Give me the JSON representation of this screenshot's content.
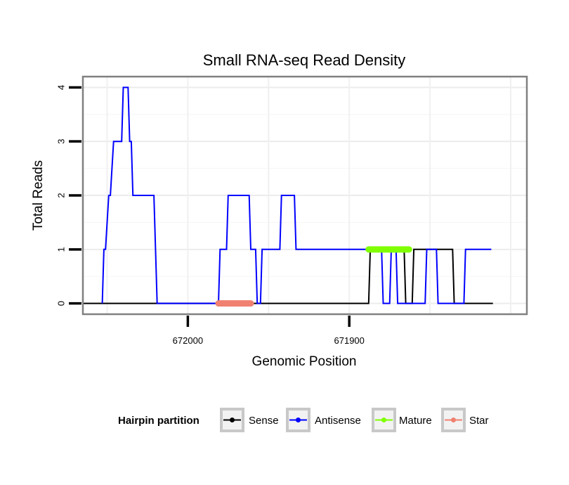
{
  "chart_data": {
    "type": "line",
    "title": "Small RNA-seq Read Density",
    "xlabel": "Genomic Position",
    "ylabel": "Total Reads",
    "x_reversed": true,
    "xlim": [
      672065,
      671790
    ],
    "ylim": [
      -0.2,
      4.2
    ],
    "x_ticks": [
      672000,
      671900
    ],
    "x_tick_labels": [
      "672000",
      "671900"
    ],
    "y_ticks": [
      0,
      1,
      2,
      3,
      4
    ],
    "y_tick_labels": [
      "0",
      "1",
      "2",
      "3",
      "4"
    ],
    "grid": true,
    "legend": {
      "title": "Hairpin partition",
      "position": "bottom",
      "entries": [
        {
          "label": "Sense",
          "color": "#000000"
        },
        {
          "label": "Antisense",
          "color": "#0000FF"
        },
        {
          "label": "Mature",
          "color": "#7FFF00"
        },
        {
          "label": "Star",
          "color": "#F08070"
        }
      ]
    },
    "series": [
      {
        "name": "Sense",
        "color": "#000000",
        "x": [
          672065,
          671888,
          671887,
          671866,
          671865,
          671861,
          671860,
          671856,
          671855,
          671836,
          671835,
          671811
        ],
        "y": [
          0,
          0,
          1,
          1,
          0,
          0,
          1,
          1,
          1,
          1,
          0,
          0
        ]
      },
      {
        "name": "Antisense",
        "color": "#0000FF",
        "x": [
          672053,
          672052,
          672051,
          672049,
          672048,
          672046,
          672045,
          672041,
          672040,
          672037,
          672036,
          672035,
          672034,
          672029,
          672028,
          672021,
          672020,
          672019,
          671981,
          671980,
          671976,
          671975,
          671962,
          671961,
          671958,
          671957,
          671955,
          671954,
          671943,
          671942,
          671934,
          671933,
          671929,
          671928,
          671880,
          671879,
          671875,
          671874,
          671871,
          671870,
          671853,
          671852,
          671846,
          671845,
          671829,
          671828,
          671826,
          671825,
          671812
        ],
        "y": [
          0,
          1,
          1,
          2,
          2,
          3,
          3,
          3,
          4,
          4,
          3,
          3,
          2,
          2,
          2,
          2,
          1,
          0,
          0,
          1,
          1,
          2,
          2,
          1,
          1,
          0,
          0,
          1,
          1,
          2,
          2,
          1,
          1,
          1,
          1,
          0,
          0,
          1,
          1,
          0,
          0,
          1,
          1,
          0,
          0,
          1,
          1,
          1,
          1
        ]
      }
    ],
    "segments": [
      {
        "name": "Mature",
        "color": "#7FFF00",
        "x_start": 671888,
        "x_end": 671863,
        "y": 1
      },
      {
        "name": "Star",
        "color": "#F08070",
        "x_start": 671981,
        "x_end": 671961,
        "y": 0
      }
    ]
  }
}
